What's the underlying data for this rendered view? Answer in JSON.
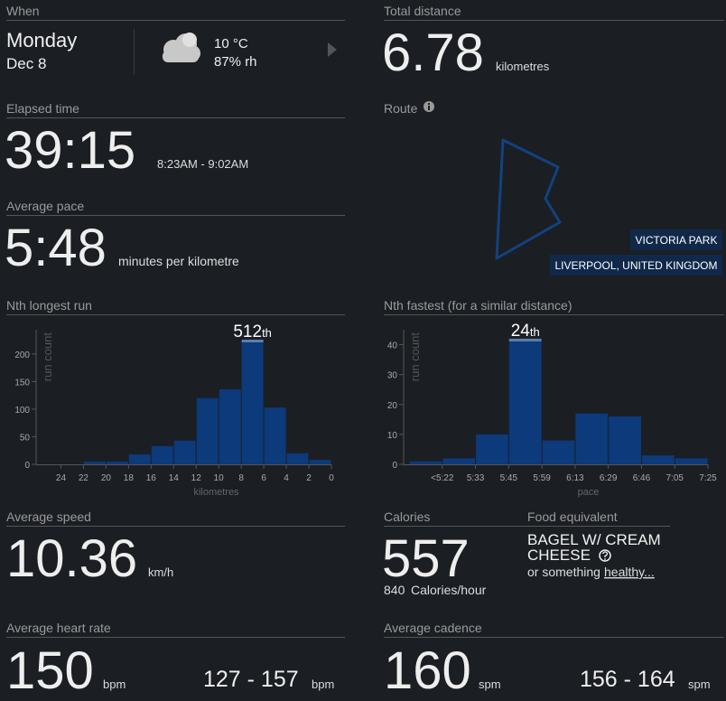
{
  "when": {
    "label": "When",
    "day": "Monday",
    "date": "Dec 8",
    "temperature": "10 °C",
    "humidity": "87% rh"
  },
  "total_distance": {
    "label": "Total distance",
    "value": "6.78",
    "unit": "kilometres"
  },
  "elapsed_time": {
    "label": "Elapsed time",
    "value": "39:15",
    "range": "8:23AM - 9:02AM"
  },
  "route": {
    "label": "Route",
    "park": "VICTORIA PARK",
    "location": "LIVERPOOL, UNITED KINGDOM"
  },
  "average_pace": {
    "label": "Average pace",
    "value": "5:48",
    "unit": "minutes per kilometre"
  },
  "chart_data": [
    {
      "type": "histogram",
      "title": "Nth longest run",
      "bins": [
        22,
        20,
        18,
        16,
        14,
        12,
        10,
        8,
        6,
        4,
        2,
        0
      ],
      "values": [
        5,
        5,
        18,
        33,
        43,
        120,
        136,
        226,
        103,
        20,
        8
      ],
      "color": "#0c3a7a",
      "xlim": [
        26.2,
        0
      ],
      "xticks": [
        24,
        22,
        20,
        18,
        16,
        14,
        12,
        10,
        8,
        6,
        4,
        2,
        0
      ],
      "ylim": [
        0,
        244
      ],
      "yticks": [
        0,
        50,
        100,
        150,
        200
      ],
      "x_label": "kilometres",
      "y_label": "run count",
      "highlight": {
        "index": 7,
        "label": "512",
        "suffix": "th"
      }
    },
    {
      "type": "histogram",
      "title": "Nth fastest (for a similar distance)",
      "bins": [
        null,
        "<5:22",
        "5:33",
        "5:45",
        "5:59",
        "6:13",
        "6:29",
        "6:46",
        "7:05",
        "7:25"
      ],
      "values": [
        1,
        2,
        10,
        42,
        8,
        17,
        16,
        3,
        2
      ],
      "color": "#0c3a7a",
      "ylim": [
        0,
        45
      ],
      "yticks": [
        0,
        10,
        20,
        30,
        40
      ],
      "x_label": "pace",
      "y_label": "run count",
      "highlight": {
        "index": 3,
        "label": "24",
        "suffix": "th"
      }
    }
  ],
  "average_speed": {
    "label": "Average speed",
    "value": "10.36",
    "unit": "km/h"
  },
  "calories": {
    "label": "Calories",
    "value": "557",
    "rate": "840",
    "rate_unit": "Calories/hour"
  },
  "food_equivalent": {
    "label": "Food equivalent",
    "food": "BAGEL W/ CREAM CHEESE",
    "note": "or something",
    "link": "healthy..."
  },
  "average_heart_rate": {
    "label": "Average heart rate",
    "value": "150",
    "unit": "bpm",
    "range": "127 - 157",
    "range_unit": "bpm"
  },
  "average_cadence": {
    "label": "Average cadence",
    "value": "160",
    "unit": "spm",
    "range": "156 - 164",
    "range_unit": "spm"
  }
}
